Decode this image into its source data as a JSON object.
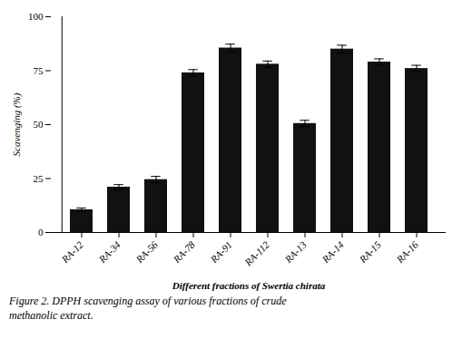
{
  "chart_data": {
    "type": "bar",
    "categories": [
      "RA-12",
      "RA-34",
      "RA-56",
      "RA-78",
      "RA-91",
      "RA-112",
      "RA-13",
      "RA-14",
      "RA-15",
      "RA-16"
    ],
    "values": [
      10.5,
      21.0,
      24.5,
      74.0,
      85.5,
      78.0,
      50.5,
      85.0,
      79.0,
      76.0
    ],
    "errors": [
      0.8,
      1.2,
      1.5,
      1.5,
      1.8,
      1.5,
      1.5,
      1.8,
      1.5,
      1.5
    ],
    "color": "#111111",
    "x_label": "Different fractions of Swertia chirata",
    "y_label": "Scavenging (%)",
    "ylim": [
      0,
      100
    ],
    "yticks": [
      0,
      25,
      50,
      75,
      100
    ],
    "grid": false,
    "annotations": [
      "Figure 2.  DPPH scavenging assay of various fractions of crude",
      "methanolic extract."
    ]
  }
}
